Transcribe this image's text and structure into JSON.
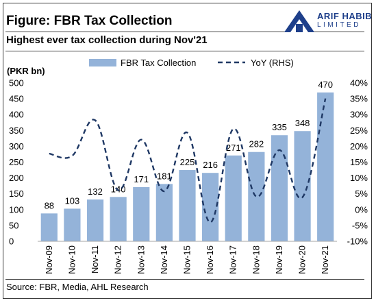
{
  "header": {
    "title": "Figure: FBR Tax Collection",
    "subtitle": "Highest ever tax collection during Nov'21"
  },
  "logo": {
    "name": "ARIF HABIB",
    "sub": "LIMITED",
    "color": "#1e3f8a"
  },
  "footer": {
    "source": "Source: FBR, Media, AHL Research"
  },
  "chart_data": {
    "type": "bar",
    "title": "",
    "ylabel": "(PKR bn)",
    "ylim": [
      0,
      500
    ],
    "y2lim": [
      -10,
      40
    ],
    "yticks": [
      "0",
      "50",
      "100",
      "150",
      "200",
      "250",
      "300",
      "350",
      "400",
      "450",
      "500"
    ],
    "y2ticks": [
      "-10%",
      "-5%",
      "0%",
      "5%",
      "10%",
      "15%",
      "20%",
      "25%",
      "30%",
      "35%",
      "40%"
    ],
    "categories": [
      "Nov-09",
      "Nov-10",
      "Nov-11",
      "Nov-12",
      "Nov-13",
      "Nov-14",
      "Nov-15",
      "Nov-16",
      "Nov-17",
      "Nov-18",
      "Nov-19",
      "Nov-20",
      "Nov-21"
    ],
    "legend_position": "top",
    "grid": false,
    "series": [
      {
        "name": "FBR Tax Collection",
        "type": "bar",
        "axis": "left",
        "color": "#94b3d9",
        "values": [
          88,
          103,
          132,
          140,
          171,
          181,
          225,
          216,
          271,
          282,
          335,
          348,
          470
        ],
        "labels": [
          "88",
          "103",
          "132",
          "140",
          "171",
          "181",
          "225",
          "216",
          "271",
          "282",
          "335",
          "348",
          "470"
        ]
      },
      {
        "name": "YoY (RHS)",
        "type": "line",
        "axis": "right",
        "style": "dashed",
        "color": "#1f3864",
        "values": [
          17.7,
          17.0,
          28.2,
          6.1,
          22.1,
          5.8,
          24.3,
          -4.0,
          25.5,
          4.1,
          18.8,
          3.9,
          35.1
        ]
      }
    ]
  }
}
